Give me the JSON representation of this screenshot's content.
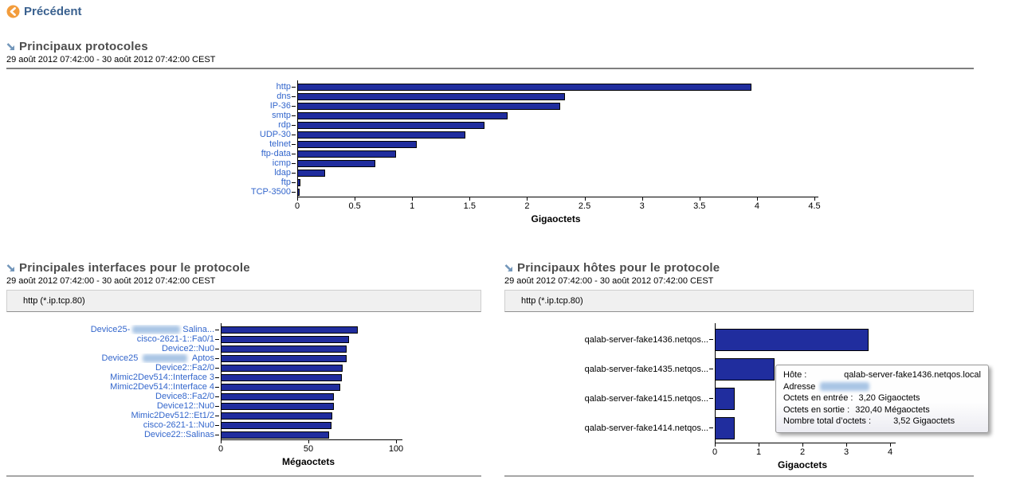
{
  "colors": {
    "bar_fill": "#202D9E",
    "bar_border": "#000000",
    "label_link_blue": "#3366CC",
    "back_accent_orange": "#F29C3C",
    "back_text_blue": "#3A618F",
    "section_title_gray": "#4D4D4D",
    "filter_box_gray": "#F0F0F0"
  },
  "back": {
    "label": "Précédent"
  },
  "sections": {
    "protocols": {
      "title": "Principaux protocoles",
      "daterange": "29 août 2012 07:42:00 - 30 août 2012 07:42:00 CEST"
    },
    "interfaces": {
      "title": "Principales interfaces pour le protocole",
      "daterange": "29 août 2012 07:42:00 - 30 août 2012 07:42:00 CEST",
      "filter": "http (*.ip.tcp.80)"
    },
    "hosts": {
      "title": "Principaux hôtes pour le protocole",
      "daterange": "29 août 2012 07:42:00 - 30 août 2012 07:42:00 CEST",
      "filter": "http (*.ip.tcp.80)"
    }
  },
  "chart_data": [
    {
      "id": "top-protocols",
      "type": "bar",
      "orientation": "horizontal",
      "categories": [
        "http",
        "dns",
        "IP-36",
        "smtp",
        "rdp",
        "UDP-30",
        "telnet",
        "ftp-data",
        "icmp",
        "ldap",
        "ftp",
        "TCP-3500"
      ],
      "values": [
        3.95,
        2.33,
        2.29,
        1.83,
        1.63,
        1.46,
        1.04,
        0.86,
        0.68,
        0.24,
        0.03,
        0.02
      ],
      "xlabel": "Gigaoctets",
      "xlim": [
        0,
        4.5
      ],
      "ticks": [
        0,
        0.5,
        1,
        1.5,
        2,
        2.5,
        3,
        3.5,
        4,
        4.5
      ],
      "grid": false,
      "clickable_labels": true
    },
    {
      "id": "top-interfaces",
      "type": "bar",
      "orientation": "horizontal",
      "categories": [
        {
          "prefix": "Device25-",
          "blur": true,
          "blur_w": 60,
          "suffix": "Salina..."
        },
        "cisco-2621-1::Fa0/1",
        "Device2::Nu0",
        {
          "prefix": "Device25 ",
          "blur": true,
          "blur_w": 56,
          "suffix": " Aptos"
        },
        "Device2::Fa2/0",
        "Mimic2Dev514::Interface 3",
        "Mimic2Dev514::Interface 4",
        "Device8::Fa2/0",
        "Device12::Nu0",
        "Mimic2Dev512::Et1/2",
        "cisco-2621-1::Nu0",
        "Device22::Salinas"
      ],
      "values": [
        78,
        73,
        72,
        71.8,
        69.7,
        69.2,
        68,
        64.6,
        64.5,
        63.6,
        63,
        62
      ],
      "xlabel": "Mégaoctets",
      "xlim": [
        0,
        100
      ],
      "ticks": [
        0,
        50,
        100
      ],
      "grid": false,
      "clickable_labels": true
    },
    {
      "id": "top-hosts",
      "type": "bar",
      "orientation": "horizontal",
      "categories": [
        "qalab-server-fake1436.netqos...",
        "qalab-server-fake1435.netqos...",
        "qalab-server-fake1415.netqos...",
        "qalab-server-fake1414.netqos..."
      ],
      "values": [
        3.5,
        1.36,
        0.45,
        0.45
      ],
      "xlabel": "Gigaoctets",
      "xlim": [
        0,
        4
      ],
      "ticks": [
        0,
        1,
        2,
        3,
        4
      ],
      "grid": false,
      "clickable_labels": false
    }
  ],
  "tooltip": {
    "host_label": "Hôte :",
    "host_value": "qalab-server-fake1436.netqos.local",
    "address_label": "Adresse",
    "address_redacted": true,
    "in_label": "Octets en entrée :",
    "in_value": "3,20 Gigaoctets",
    "out_label": "Octets en sortie :",
    "out_value": "320,40 Mégaoctets",
    "total_label": "Nombre total d’octets :",
    "total_value": "3,52 Gigaoctets"
  }
}
